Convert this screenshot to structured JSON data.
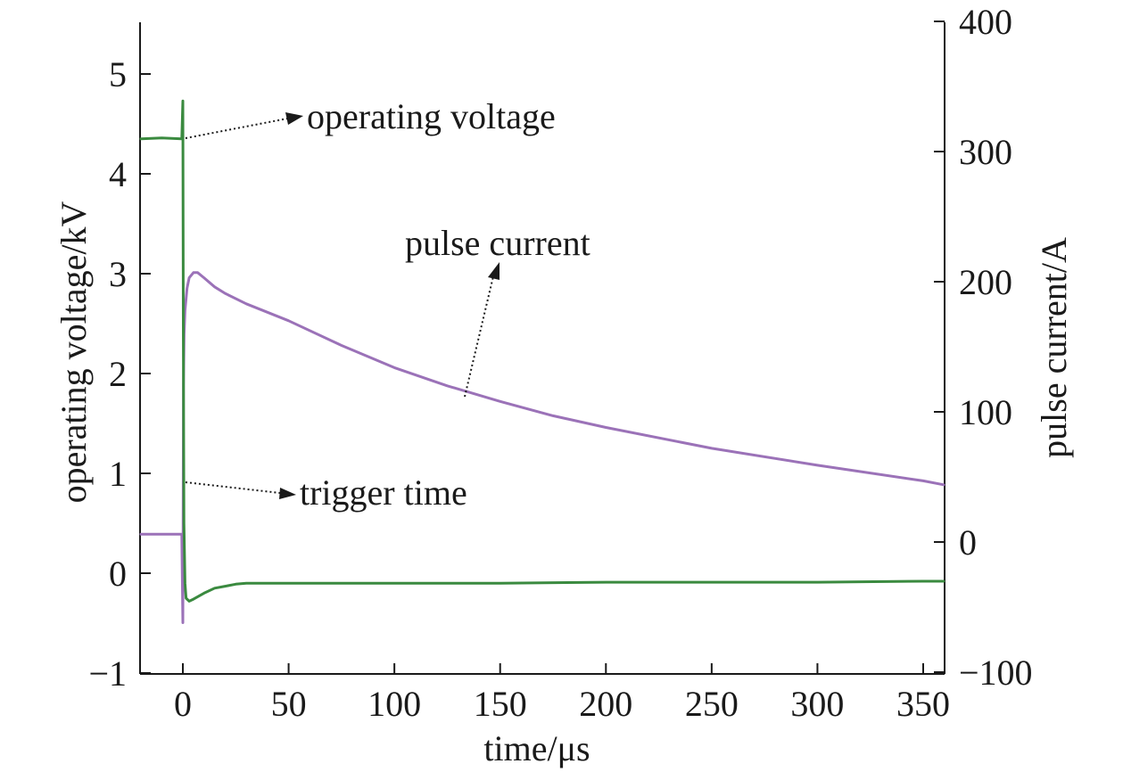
{
  "chart_data": {
    "type": "line",
    "xlabel": "time/μs",
    "ylabel_left": "operating voltage/kV",
    "ylabel_right": "pulse current/A",
    "xlim": [
      -20,
      360
    ],
    "ylim_left": [
      -1,
      5.5
    ],
    "ylim_right": [
      -100,
      400
    ],
    "x_ticks": [
      0,
      50,
      100,
      150,
      200,
      250,
      300,
      350
    ],
    "y_left_ticks": [
      -1,
      0,
      1,
      2,
      3,
      4,
      5
    ],
    "y_right_ticks": [
      -100,
      0,
      100,
      200,
      300,
      400
    ],
    "grid": false,
    "series": [
      {
        "key": "voltage",
        "axis": "left",
        "color": "#3a8a3f",
        "x": [
          -20,
          -10,
          -0.5,
          0,
          0.2,
          0.5,
          1,
          1.5,
          3,
          5,
          10,
          15,
          20,
          25,
          30,
          40,
          50,
          75,
          100,
          150,
          200,
          250,
          300,
          350,
          360
        ],
        "y": [
          4.35,
          4.36,
          4.35,
          4.73,
          2.5,
          0.5,
          -0.1,
          -0.25,
          -0.28,
          -0.26,
          -0.2,
          -0.15,
          -0.13,
          -0.11,
          -0.1,
          -0.1,
          -0.1,
          -0.1,
          -0.1,
          -0.1,
          -0.09,
          -0.09,
          -0.09,
          -0.08,
          -0.08
        ]
      },
      {
        "key": "current",
        "axis": "right",
        "color": "#9b72b8",
        "x": [
          -20,
          -10,
          -0.5,
          0,
          0.3,
          0.6,
          1,
          2,
          3,
          5,
          7,
          10,
          15,
          20,
          30,
          50,
          75,
          100,
          125,
          150,
          175,
          200,
          250,
          300,
          350,
          360
        ],
        "y": [
          6,
          6,
          6,
          -62,
          120,
          160,
          178,
          195,
          203,
          207,
          207,
          203,
          196,
          191,
          183,
          170,
          151,
          134,
          120,
          108,
          97,
          88,
          72,
          59,
          47,
          44
        ]
      }
    ],
    "annotations": [
      "operating voltage",
      "pulse current",
      "trigger time"
    ]
  }
}
